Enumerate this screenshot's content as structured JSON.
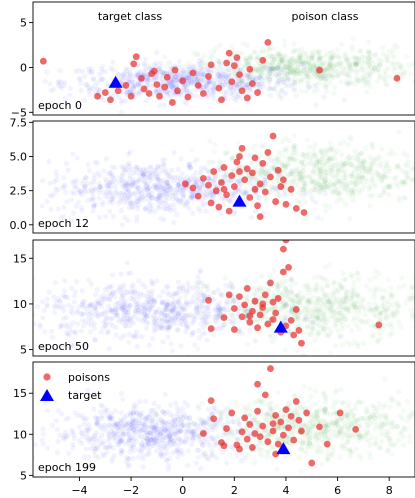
{
  "chart_data": {
    "type": "scatter",
    "x_ticks": [
      "−4",
      "−2",
      "0",
      "2",
      "4",
      "6",
      "8"
    ],
    "x_tick_values": [
      -4,
      -2,
      0,
      2,
      4,
      6,
      8
    ],
    "xlim": [
      -5.8,
      9.0
    ],
    "colors": {
      "target_class": "#3b3bff",
      "poison_class": "#48b048",
      "poisons": "#e8312f",
      "target": "#0000ff"
    },
    "panels": [
      {
        "label": "epoch 0",
        "annotations": [
          "target class",
          "poison class"
        ],
        "ylim": [
          -5.3,
          7.3
        ],
        "y_ticks": [
          "−5",
          "0",
          "5"
        ],
        "y_tick_values": [
          -5,
          0,
          5
        ],
        "blue_cloud": {
          "cx": 0.0,
          "cy": -1.6,
          "sx": 2.3,
          "sy": 1.0
        },
        "green_cloud": {
          "cx": 4.8,
          "cy": 0.0,
          "sx": 2.1,
          "sy": 1.1
        },
        "target": [
          -2.6,
          -1.7
        ],
        "poisons": [
          [
            -5.4,
            0.7
          ],
          [
            -3.3,
            -3.2
          ],
          [
            -3.0,
            -2.8
          ],
          [
            -2.8,
            -3.6
          ],
          [
            -2.5,
            -2.6
          ],
          [
            -2.2,
            -2.0
          ],
          [
            -2.0,
            -3.2
          ],
          [
            -1.9,
            0.4
          ],
          [
            -1.8,
            1.2
          ],
          [
            -1.6,
            -1.2
          ],
          [
            -1.5,
            -2.4
          ],
          [
            -1.3,
            -2.9
          ],
          [
            -1.2,
            -0.7
          ],
          [
            -1.0,
            -1.9
          ],
          [
            -0.9,
            -3.2
          ],
          [
            -0.7,
            -2.2
          ],
          [
            -0.6,
            -1.1
          ],
          [
            -0.4,
            -3.9
          ],
          [
            -0.3,
            -0.3
          ],
          [
            -0.2,
            -2.6
          ],
          [
            0.0,
            -1.5
          ],
          [
            0.2,
            -3.3
          ],
          [
            0.4,
            -0.6
          ],
          [
            0.6,
            -2.0
          ],
          [
            0.8,
            -2.9
          ],
          [
            1.0,
            -1.0
          ],
          [
            1.1,
            0.3
          ],
          [
            1.4,
            -2.3
          ],
          [
            1.5,
            -3.6
          ],
          [
            1.7,
            0.5
          ],
          [
            1.9,
            -1.6
          ],
          [
            2.0,
            0.2
          ],
          [
            2.1,
            1.1
          ],
          [
            2.2,
            -0.8
          ],
          [
            2.3,
            -2.6
          ],
          [
            2.5,
            -3.4
          ],
          [
            2.7,
            -1.8
          ],
          [
            2.9,
            -2.8
          ],
          [
            3.1,
            0.8
          ],
          [
            3.3,
            2.8
          ],
          [
            2.6,
            -0.2
          ],
          [
            1.8,
            1.6
          ],
          [
            -1.1,
            -0.4
          ],
          [
            5.3,
            -0.3
          ],
          [
            8.3,
            -1.2
          ]
        ]
      },
      {
        "label": "epoch 12",
        "ylim": [
          -0.6,
          7.6
        ],
        "y_ticks": [
          "0.0",
          "2.5",
          "5.0",
          "7.5"
        ],
        "y_tick_values": [
          0,
          2.5,
          5,
          7.5
        ],
        "blue_cloud": {
          "cx": -1.0,
          "cy": 2.7,
          "sx": 2.2,
          "sy": 1.0
        },
        "green_cloud": {
          "cx": 5.2,
          "cy": 3.8,
          "sx": 2.0,
          "sy": 1.1
        },
        "target": [
          2.2,
          1.7
        ],
        "poisons": [
          [
            0.1,
            3.0
          ],
          [
            0.4,
            2.7
          ],
          [
            0.6,
            2.1
          ],
          [
            0.8,
            3.4
          ],
          [
            1.0,
            2.9
          ],
          [
            1.1,
            1.6
          ],
          [
            1.2,
            3.9
          ],
          [
            1.3,
            2.5
          ],
          [
            1.4,
            1.3
          ],
          [
            1.5,
            3.1
          ],
          [
            1.6,
            4.2
          ],
          [
            1.7,
            2.2
          ],
          [
            1.8,
            1.0
          ],
          [
            1.9,
            3.6
          ],
          [
            2.0,
            2.8
          ],
          [
            2.1,
            4.6
          ],
          [
            2.2,
            5.0
          ],
          [
            2.3,
            5.6
          ],
          [
            2.4,
            3.3
          ],
          [
            2.5,
            4.1
          ],
          [
            2.6,
            2.0
          ],
          [
            2.7,
            3.8
          ],
          [
            2.8,
            4.9
          ],
          [
            2.9,
            1.4
          ],
          [
            3.0,
            3.0
          ],
          [
            3.1,
            4.5
          ],
          [
            3.2,
            2.4
          ],
          [
            3.3,
            5.3
          ],
          [
            3.4,
            3.5
          ],
          [
            3.5,
            6.5
          ],
          [
            3.6,
            1.7
          ],
          [
            3.7,
            4.0
          ],
          [
            3.8,
            2.8
          ],
          [
            3.9,
            3.3
          ],
          [
            4.0,
            1.5
          ],
          [
            4.2,
            2.6
          ],
          [
            4.4,
            1.2
          ],
          [
            4.7,
            0.9
          ],
          [
            3.0,
            0.6
          ],
          [
            2.8,
            2.6
          ],
          [
            1.6,
            2.6
          ],
          [
            2.2,
            3.9
          ]
        ]
      },
      {
        "label": "epoch 50",
        "ylim": [
          4.3,
          17.0
        ],
        "y_ticks": [
          "5",
          "10",
          "15"
        ],
        "y_tick_values": [
          5,
          10,
          15
        ],
        "blue_cloud": {
          "cx": -1.2,
          "cy": 9.2,
          "sx": 2.3,
          "sy": 1.6
        },
        "green_cloud": {
          "cx": 5.3,
          "cy": 9.6,
          "sx": 2.1,
          "sy": 1.7
        },
        "target": [
          3.8,
          7.4
        ],
        "poisons": [
          [
            1.0,
            10.4
          ],
          [
            1.1,
            7.3
          ],
          [
            1.6,
            8.5
          ],
          [
            1.8,
            11.0
          ],
          [
            2.0,
            9.5
          ],
          [
            2.2,
            10.8
          ],
          [
            2.3,
            8.6
          ],
          [
            2.4,
            9.9
          ],
          [
            2.5,
            11.7
          ],
          [
            2.6,
            8.0
          ],
          [
            2.7,
            9.2
          ],
          [
            2.8,
            10.3
          ],
          [
            2.9,
            7.4
          ],
          [
            3.0,
            8.8
          ],
          [
            3.1,
            9.6
          ],
          [
            3.2,
            11.0
          ],
          [
            3.3,
            7.8
          ],
          [
            3.4,
            12.3
          ],
          [
            3.5,
            8.3
          ],
          [
            3.6,
            9.0
          ],
          [
            3.7,
            10.6
          ],
          [
            3.8,
            6.9
          ],
          [
            3.9,
            13.5
          ],
          [
            4.0,
            7.6
          ],
          [
            4.1,
            14.0
          ],
          [
            4.2,
            8.2
          ],
          [
            4.3,
            6.6
          ],
          [
            4.4,
            9.4
          ],
          [
            4.5,
            7.1
          ],
          [
            4.6,
            5.7
          ],
          [
            3.9,
            16.0
          ],
          [
            4.0,
            17.0
          ],
          [
            3.1,
            10.0
          ],
          [
            2.6,
            8.7
          ],
          [
            7.6,
            7.7
          ],
          [
            2.0,
            7.2
          ],
          [
            3.5,
            10.2
          ]
        ]
      },
      {
        "label": "epoch 199",
        "legend": [
          "poisons",
          "target"
        ],
        "ylim": [
          4.8,
          18.8
        ],
        "y_ticks": [
          "5",
          "10",
          "15"
        ],
        "y_tick_values": [
          5,
          10,
          15
        ],
        "blue_cloud": {
          "cx": -1.3,
          "cy": 10.2,
          "sx": 1.9,
          "sy": 1.7
        },
        "green_cloud": {
          "cx": 5.3,
          "cy": 10.8,
          "sx": 2.1,
          "sy": 1.8
        },
        "target": [
          3.9,
          8.2
        ],
        "poisons": [
          [
            0.8,
            10.1
          ],
          [
            1.2,
            11.9
          ],
          [
            1.5,
            9.0
          ],
          [
            1.7,
            10.7
          ],
          [
            1.9,
            12.6
          ],
          [
            2.1,
            8.7
          ],
          [
            2.3,
            10.3
          ],
          [
            2.4,
            12.0
          ],
          [
            2.5,
            9.4
          ],
          [
            2.6,
            11.2
          ],
          [
            2.7,
            8.4
          ],
          [
            2.8,
            10.1
          ],
          [
            2.9,
            12.8
          ],
          [
            3.0,
            9.7
          ],
          [
            3.1,
            11.0
          ],
          [
            3.2,
            14.8
          ],
          [
            3.3,
            9.1
          ],
          [
            3.4,
            18.0
          ],
          [
            3.5,
            10.4
          ],
          [
            3.6,
            12.3
          ],
          [
            3.7,
            8.8
          ],
          [
            3.8,
            11.5
          ],
          [
            3.9,
            9.9
          ],
          [
            4.0,
            13.0
          ],
          [
            4.1,
            10.8
          ],
          [
            4.2,
            12.2
          ],
          [
            4.3,
            9.3
          ],
          [
            4.4,
            14.0
          ],
          [
            4.5,
            11.7
          ],
          [
            4.6,
            10.4
          ],
          [
            4.8,
            12.6
          ],
          [
            5.0,
            6.5
          ],
          [
            5.3,
            10.9
          ],
          [
            5.6,
            8.8
          ],
          [
            6.1,
            12.6
          ],
          [
            6.7,
            10.6
          ],
          [
            1.6,
            8.6
          ],
          [
            1.1,
            14.1
          ],
          [
            2.2,
            8.2
          ],
          [
            3.6,
            7.6
          ],
          [
            2.9,
            16.1
          ],
          [
            3.5,
            11.3
          ]
        ]
      }
    ]
  }
}
